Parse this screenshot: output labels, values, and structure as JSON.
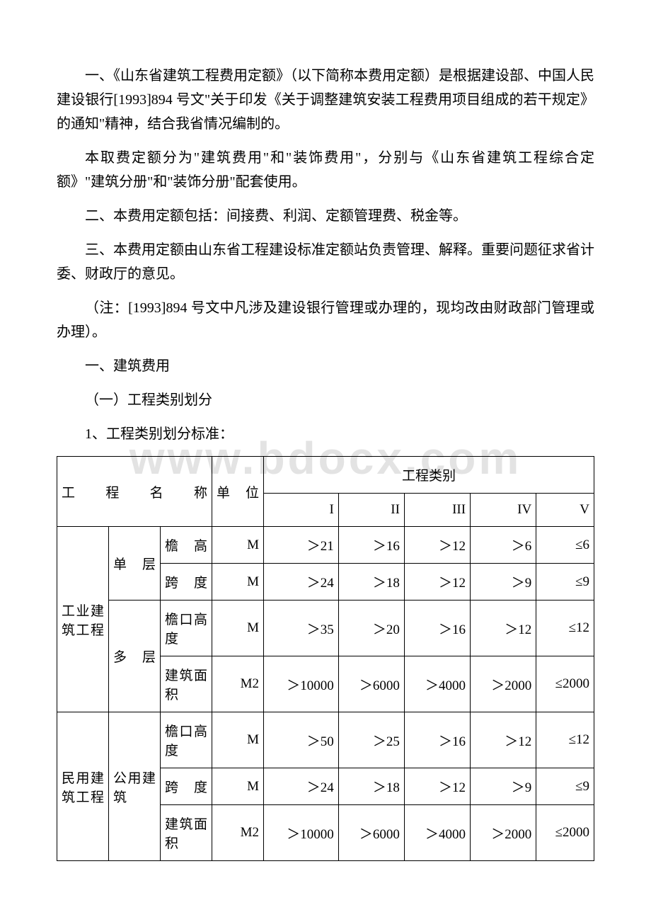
{
  "paragraphs": {
    "p1": "一、《山东省建筑工程费用定额》（以下简称本费用定额）是根据建设部、中国人民建设银行[1993]894 号文\"关于印发《关于调整建筑安装工程费用项目组成的若干规定》的通知\"精神，结合我省情况编制的。",
    "p2": "本取费定额分为\"建筑费用\"和\"装饰费用\"，分别与《山东省建筑工程综合定额》\"建筑分册\"和\"装饰分册\"配套使用。",
    "p3": "二、本费用定额包括：间接费、利润、定额管理费、税金等。",
    "p4": "三、本费用定额由山东省工程建设标准定额站负责管理、解释。重要问题征求省计委、财政厅的意见。",
    "p5": "（注：[1993]894 号文中凡涉及建设银行管理或办理的，现均改由财政部门管理或办理）。",
    "p6": "一、建筑费用",
    "p7": "（一）工程类别划分",
    "p8": "1、工程类别划分标准："
  },
  "watermark": "www.bdocx.com",
  "table": {
    "header": {
      "name_h": "工程名称",
      "unit_h": "单位",
      "cat_h": "工程类别",
      "cats": [
        "I",
        "II",
        "III",
        "IV",
        "V"
      ]
    },
    "groups": [
      {
        "label": "工业建筑工程",
        "subgroups": [
          {
            "label": "单层",
            "rows": [
              {
                "metric": "檐高",
                "unit": "M",
                "v": [
                  "＞21",
                  "＞16",
                  "＞12",
                  "＞6",
                  "≤6"
                ]
              },
              {
                "metric": "跨度",
                "unit": "M",
                "v": [
                  "＞24",
                  "＞18",
                  "＞12",
                  "＞9",
                  "≤9"
                ]
              }
            ]
          },
          {
            "label": "多层",
            "rows": [
              {
                "metric": "檐口高度",
                "unit": "M",
                "v": [
                  "＞35",
                  "＞20",
                  "＞16",
                  "＞12",
                  "≤12"
                ]
              },
              {
                "metric": "建筑面积",
                "unit": "M2",
                "v": [
                  "＞10000",
                  "＞6000",
                  "＞4000",
                  "＞2000",
                  "≤2000"
                ]
              }
            ]
          }
        ]
      },
      {
        "label": "民用建筑工程",
        "subgroups": [
          {
            "label": "公用建筑",
            "rows": [
              {
                "metric": "檐口高度",
                "unit": "M",
                "v": [
                  "＞50",
                  "＞25",
                  "＞16",
                  "＞12",
                  "≤12"
                ]
              },
              {
                "metric": "跨度",
                "unit": "M",
                "v": [
                  "＞24",
                  "＞18",
                  "＞12",
                  "＞9",
                  "≤9"
                ]
              },
              {
                "metric": "建筑面积",
                "unit": "M2",
                "v": [
                  "＞10000",
                  "＞6000",
                  "＞4000",
                  "＞2000",
                  "≤2000"
                ]
              }
            ]
          }
        ]
      }
    ]
  }
}
